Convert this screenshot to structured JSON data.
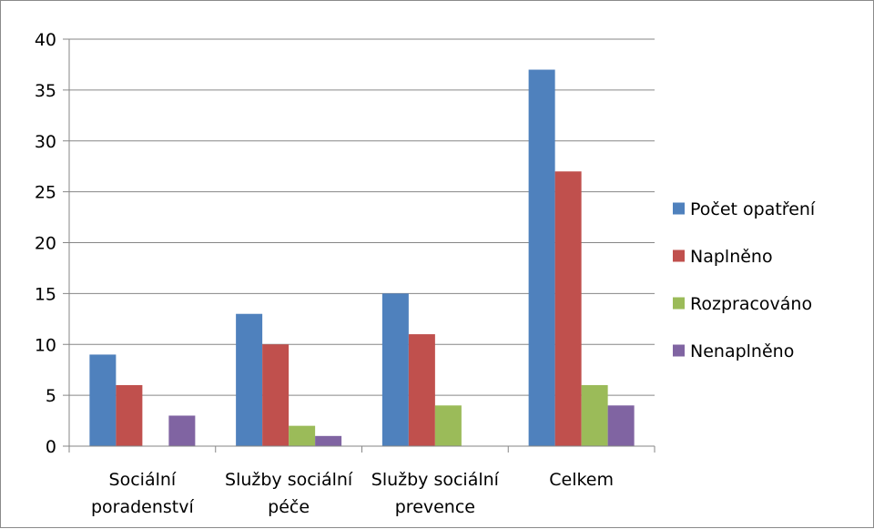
{
  "chart_data": {
    "type": "bar",
    "categories": [
      [
        "Sociální",
        "poradenství"
      ],
      [
        "Služby sociální",
        "péče"
      ],
      [
        "Služby sociální",
        "prevence"
      ],
      [
        "Celkem"
      ]
    ],
    "series": [
      {
        "name": "Počet opatření",
        "color": "#4f81bd",
        "values": [
          9,
          13,
          15,
          37
        ]
      },
      {
        "name": "Naplněno",
        "color": "#c0504d",
        "values": [
          6,
          10,
          11,
          27
        ]
      },
      {
        "name": "Rozpracováno",
        "color": "#9bbb59",
        "values": [
          0,
          2,
          4,
          6
        ]
      },
      {
        "name": "Nenaplněno",
        "color": "#8064a2",
        "values": [
          3,
          1,
          0,
          4
        ]
      }
    ],
    "ylim": [
      0,
      40
    ],
    "yticks": [
      0,
      5,
      10,
      15,
      20,
      25,
      30,
      35,
      40
    ],
    "grid": true,
    "legend_position": "right"
  }
}
